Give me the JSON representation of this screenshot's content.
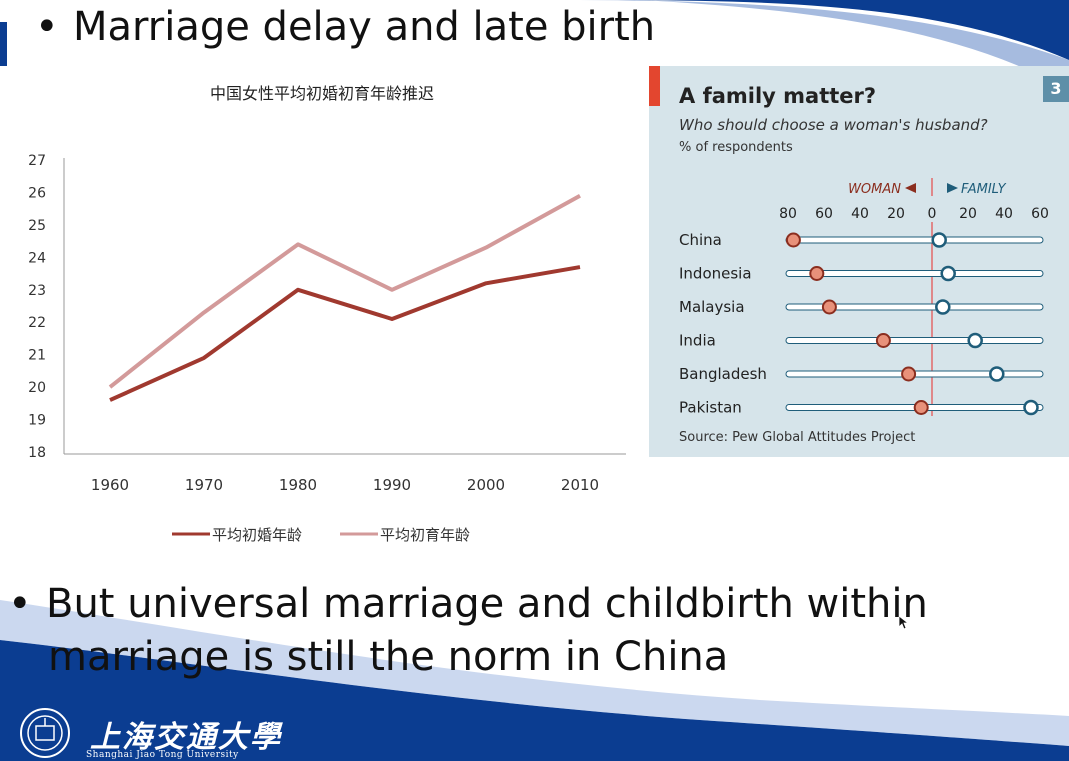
{
  "slide": {
    "bullet1": "Marriage delay and late birth",
    "bullet2_line1": "But universal marriage and childbirth within",
    "bullet2_line2": "marriage is still the norm in China",
    "bullet_symbol": "•",
    "logo_name_cn": "上海交通大學",
    "logo_name_en": "Shanghai Jiao Tong University",
    "colors": {
      "brand_blue": "#0b3d91"
    }
  },
  "chart_data": [
    {
      "type": "line",
      "title": "中国女性平均初婚初育年龄推迟",
      "xlabel": "",
      "ylabel": "",
      "x": [
        "1960",
        "1970",
        "1980",
        "1990",
        "2000",
        "2010"
      ],
      "ylim": [
        18,
        27
      ],
      "yticks": [
        18,
        19,
        20,
        21,
        22,
        23,
        24,
        25,
        26,
        27
      ],
      "grid": false,
      "legend_position": "bottom",
      "series": [
        {
          "name": "平均初婚年龄",
          "color": "#a0392f",
          "values": [
            19.6,
            20.9,
            23.0,
            22.1,
            23.2,
            23.7
          ]
        },
        {
          "name": "平均初育年龄",
          "color": "#d39a9a",
          "values": [
            20.0,
            22.3,
            24.4,
            23.0,
            24.3,
            25.9
          ]
        }
      ]
    },
    {
      "type": "scatter",
      "title": "A family matter?",
      "subtitle": "Who should choose a woman's husband?",
      "unit": "% of respondents",
      "badge": "3",
      "source": "Source: Pew Global Attitudes Project",
      "direction_left": "WOMAN",
      "direction_right": "FAMILY",
      "axis_ticks": [
        "80",
        "60",
        "40",
        "20",
        "0",
        "20",
        "40",
        "60"
      ],
      "categories": [
        "China",
        "Indonesia",
        "Malaysia",
        "India",
        "Bangladesh",
        "Pakistan"
      ],
      "series": [
        {
          "name": "WOMAN",
          "color": "#e8917a",
          "values": [
            77,
            64,
            57,
            27,
            13,
            6
          ]
        },
        {
          "name": "FAMILY",
          "color": "#ffffff",
          "values": [
            4,
            9,
            6,
            24,
            36,
            55
          ]
        }
      ],
      "colors": {
        "woman": "#8b2e1f",
        "family": "#1f5d7a",
        "zero_line": "#e26a6a",
        "panel": "#d6e4ea"
      }
    }
  ]
}
